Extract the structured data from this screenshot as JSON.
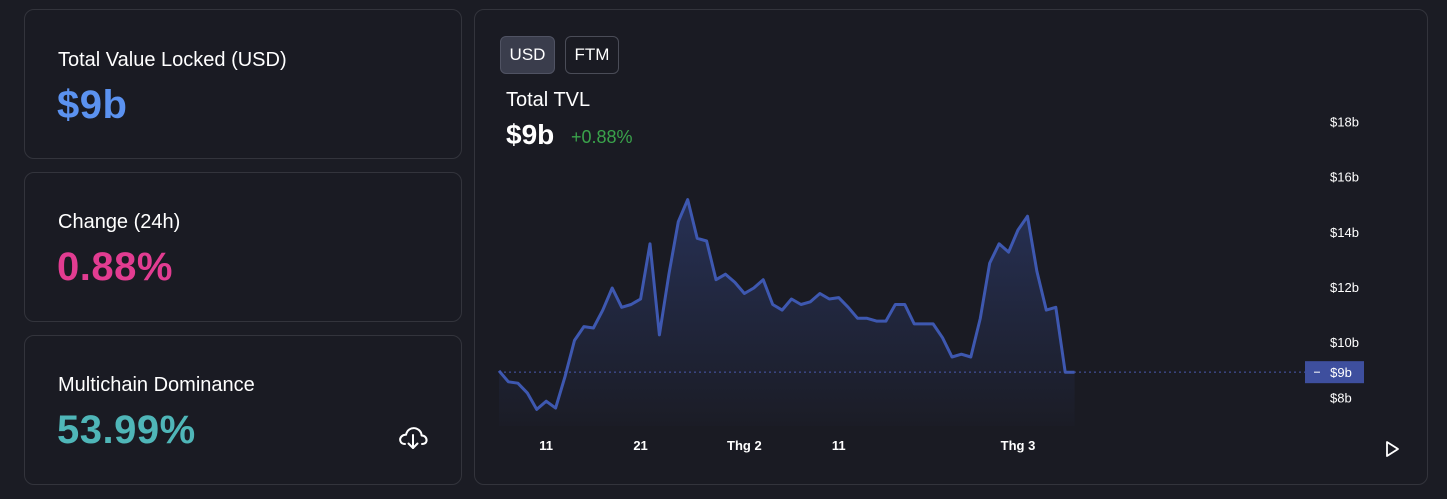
{
  "stats": {
    "tvl": {
      "label": "Total Value Locked (USD)",
      "value": "$9b",
      "color": "#5b92f0"
    },
    "change": {
      "label": "Change (24h)",
      "value": "0.88%",
      "color": "#e23c91"
    },
    "dominance": {
      "label": "Multichain Dominance",
      "value": "53.99%",
      "color": "#4fb6b8"
    }
  },
  "icons": {
    "download": "cloud-download-icon",
    "play": "play-icon"
  },
  "chart_panel": {
    "toggles": [
      {
        "label": "USD",
        "active": true
      },
      {
        "label": "FTM",
        "active": false
      }
    ],
    "title": "Total TVL",
    "value": "$9b",
    "change": "+0.88%",
    "change_color": "#3aa34b",
    "line_color": "#3e58b0"
  },
  "chart_data": {
    "type": "area",
    "title": "Total TVL",
    "y_tick_labels": [
      "$18b",
      "$16b",
      "$14b",
      "$12b",
      "$10b",
      "$8b"
    ],
    "y_ticks": [
      18,
      16,
      14,
      12,
      10,
      8
    ],
    "ylim": [
      7.0,
      18.7
    ],
    "x_tick_labels": [
      "11",
      "21",
      "Thg 2",
      "11",
      "Thg 3"
    ],
    "x_tick_positions": [
      5,
      15,
      26,
      36,
      55
    ],
    "xlim": [
      0,
      87
    ],
    "current_marker": {
      "label": "$9b",
      "value": 8.95
    },
    "series": [
      {
        "values": [
          9.0,
          8.6,
          8.55,
          8.2,
          7.6,
          7.9,
          7.65,
          8.8,
          10.1,
          10.6,
          10.55,
          11.2,
          12.0,
          11.3,
          11.4,
          11.6,
          13.6,
          10.3,
          12.5,
          14.4,
          15.2,
          13.8,
          13.7,
          12.3,
          12.5,
          12.2,
          11.8,
          12.0,
          12.3,
          11.4,
          11.2,
          11.6,
          11.4,
          11.5,
          11.8,
          11.6,
          11.65,
          11.3,
          10.9,
          10.9,
          10.8,
          10.8,
          11.4,
          11.4,
          10.7,
          10.7,
          10.7,
          10.2,
          9.5,
          9.6,
          9.5,
          10.9,
          12.9,
          13.6,
          13.3,
          14.1,
          14.6,
          12.6,
          11.2,
          11.3,
          8.95,
          8.95
        ]
      }
    ]
  }
}
